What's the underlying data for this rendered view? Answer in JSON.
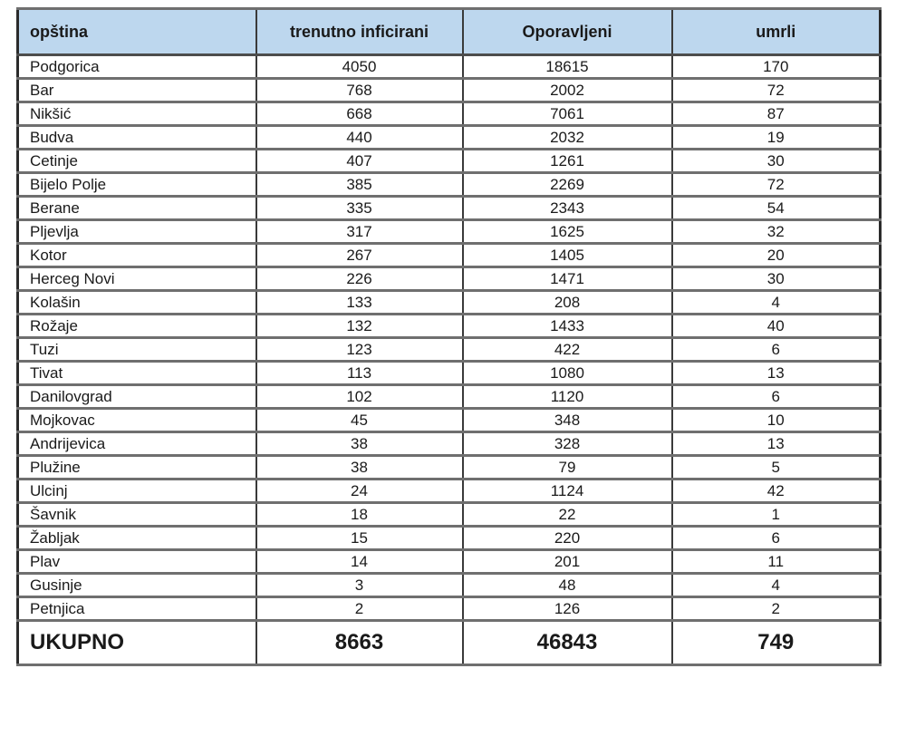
{
  "chart_data": {
    "type": "table",
    "columns": [
      "opština",
      "trenutno inficirani",
      "Oporavljeni",
      "umrli"
    ],
    "rows": [
      [
        "Podgorica",
        4050,
        18615,
        170
      ],
      [
        "Bar",
        768,
        2002,
        72
      ],
      [
        "Nikšić",
        668,
        7061,
        87
      ],
      [
        "Budva",
        440,
        2032,
        19
      ],
      [
        "Cetinje",
        407,
        1261,
        30
      ],
      [
        "Bijelo Polje",
        385,
        2269,
        72
      ],
      [
        "Berane",
        335,
        2343,
        54
      ],
      [
        "Pljevlja",
        317,
        1625,
        32
      ],
      [
        "Kotor",
        267,
        1405,
        20
      ],
      [
        "Herceg Novi",
        226,
        1471,
        30
      ],
      [
        "Kolašin",
        133,
        208,
        4
      ],
      [
        "Rožaje",
        132,
        1433,
        40
      ],
      [
        "Tuzi",
        123,
        422,
        6
      ],
      [
        "Tivat",
        113,
        1080,
        13
      ],
      [
        "Danilovgrad",
        102,
        1120,
        6
      ],
      [
        "Mojkovac",
        45,
        348,
        10
      ],
      [
        "Andrijevica",
        38,
        328,
        13
      ],
      [
        "Plužine",
        38,
        79,
        5
      ],
      [
        "Ulcinj",
        24,
        1124,
        42
      ],
      [
        "Šavnik",
        18,
        22,
        1
      ],
      [
        "Žabljak",
        15,
        220,
        6
      ],
      [
        "Plav",
        14,
        201,
        11
      ],
      [
        "Gusinje",
        3,
        48,
        4
      ],
      [
        "Petnjica",
        2,
        126,
        2
      ]
    ],
    "total_row": [
      "UKUPNO",
      8663,
      46843,
      749
    ]
  },
  "colors": {
    "header_bg": "#bdd7ee",
    "row_border": "#6f6f6f",
    "column_border": "#3a3a3a",
    "outer_border": "#2b2b2b",
    "text": "#1a1a1a"
  }
}
